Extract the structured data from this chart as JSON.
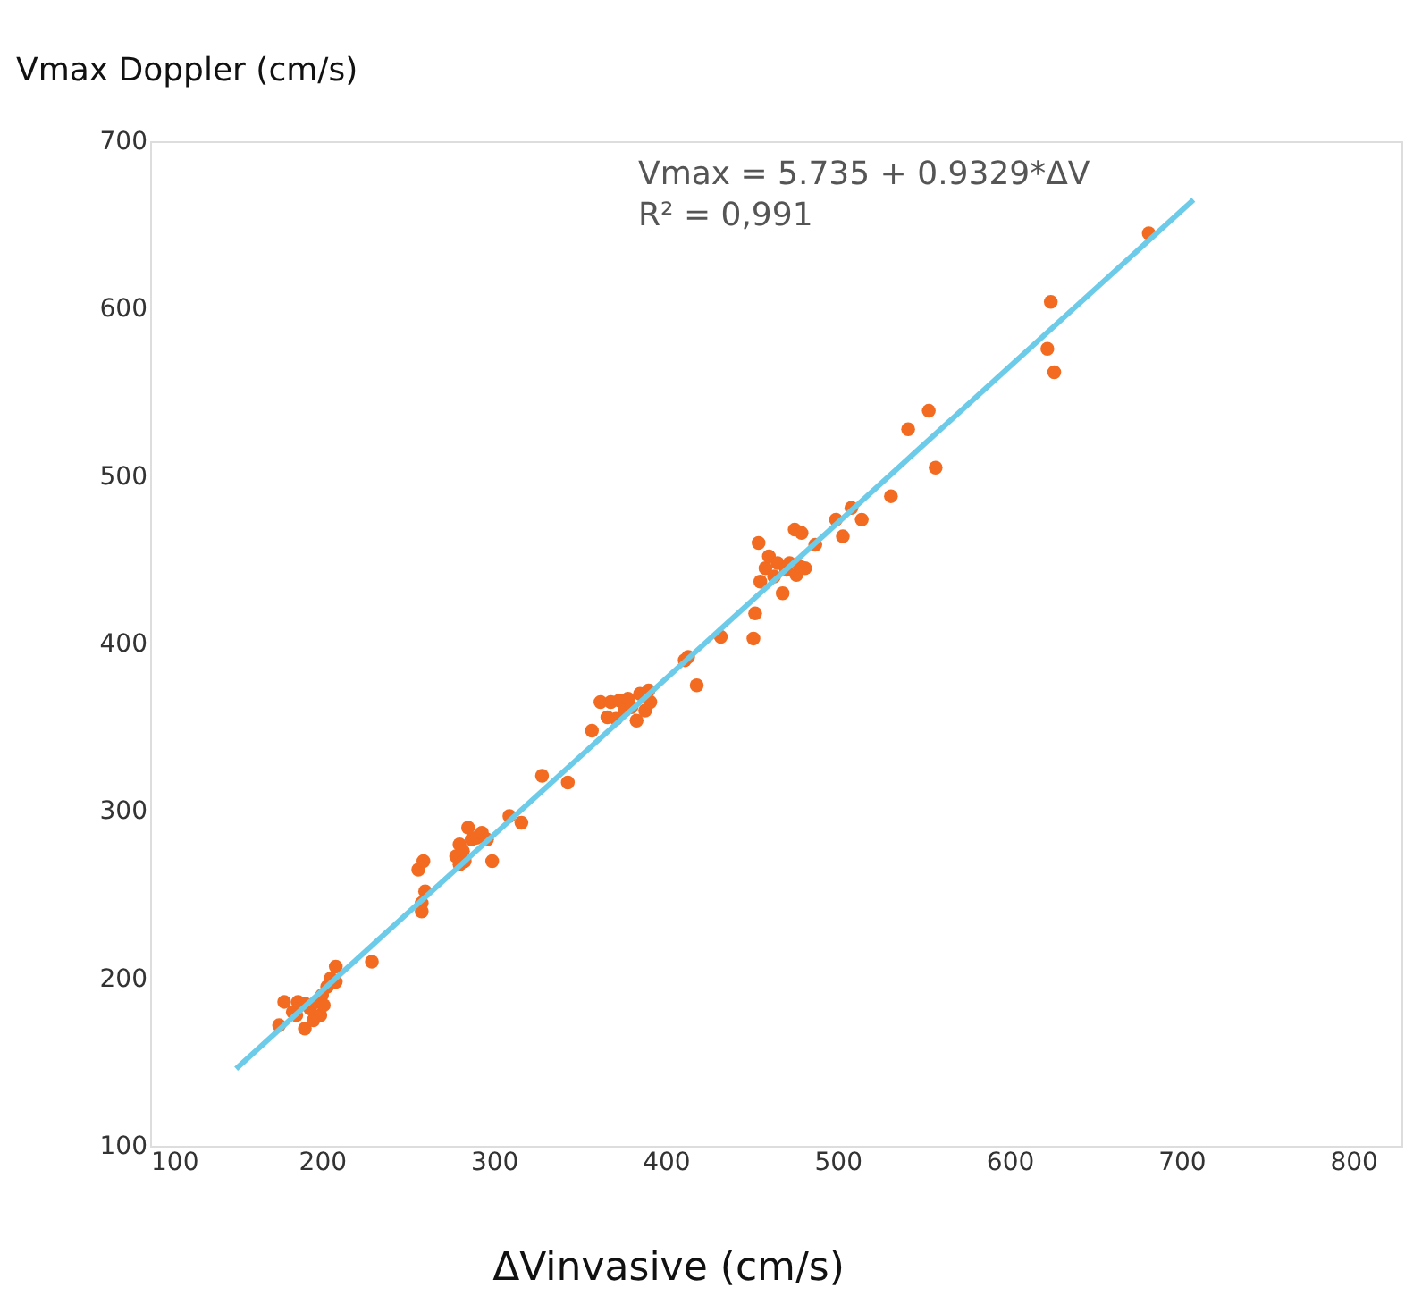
{
  "chart_data": {
    "type": "scatter",
    "xlabel": "ΔVinvasive (cm/s)",
    "ylabel": "Vmax Doppler (cm/s)",
    "annotations": [
      "Vmax = 5.735 + 0.9329*ΔV",
      "R² = 0,991"
    ],
    "xlim": [
      100,
      828
    ],
    "ylim": [
      100,
      700
    ],
    "xticks": [
      100,
      200,
      300,
      400,
      500,
      600,
      700,
      800
    ],
    "yticks": [
      100,
      200,
      300,
      400,
      500,
      600,
      700
    ],
    "grid": false,
    "marker": "circle",
    "series": [
      {
        "color": "#f26b21",
        "x": [
          175,
          178,
          183,
          186,
          190,
          193,
          195,
          197,
          199,
          200,
          201,
          203,
          205,
          208,
          208,
          190,
          185,
          229,
          258,
          258,
          260,
          256,
          259,
          278,
          280,
          282,
          285,
          287,
          290,
          293,
          296,
          283,
          280,
          299,
          309,
          316,
          328,
          343,
          357,
          362,
          366,
          368,
          371,
          373,
          376,
          378,
          380,
          383,
          385,
          388,
          390,
          391,
          411,
          413,
          418,
          432,
          451,
          452,
          455,
          454,
          458,
          460,
          463,
          465,
          468,
          470,
          472,
          475,
          476,
          478,
          479,
          481,
          487,
          499,
          503,
          508,
          514,
          531,
          541,
          553,
          557,
          622,
          624,
          626,
          681
        ],
        "values": [
          172,
          186,
          180,
          186,
          170,
          182,
          175,
          186,
          178,
          190,
          184,
          195,
          200,
          207,
          198,
          185,
          178,
          210,
          240,
          245,
          252,
          265,
          270,
          273,
          280,
          276,
          290,
          283,
          284,
          287,
          283,
          270,
          268,
          270,
          297,
          293,
          321,
          317,
          348,
          365,
          356,
          365,
          355,
          366,
          360,
          367,
          362,
          354,
          370,
          360,
          372,
          365,
          390,
          392,
          375,
          404,
          403,
          418,
          437,
          460,
          445,
          452,
          440,
          448,
          430,
          444,
          448,
          468,
          441,
          446,
          466,
          445,
          459,
          474,
          464,
          481,
          474,
          488,
          528,
          539,
          505,
          576,
          604,
          562,
          645
        ]
      },
      {
        "type": "line",
        "color": "#6ccbe8",
        "x": [
          150,
          707
        ],
        "values": [
          146,
          665
        ],
        "line_style": "solid",
        "marker": "none"
      }
    ]
  }
}
